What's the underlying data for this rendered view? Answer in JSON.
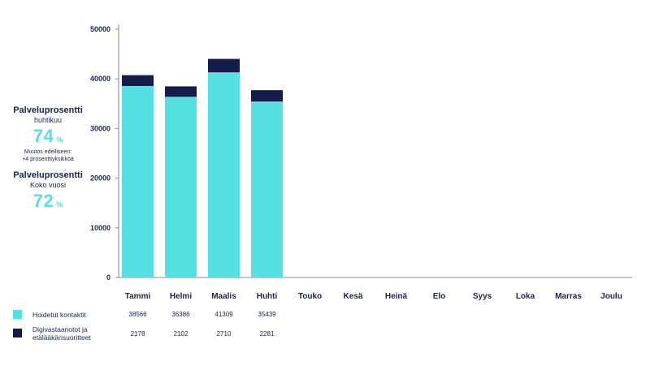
{
  "kpi_month": {
    "title": "Palveluprosentti",
    "subtitle": "huhtikuu",
    "value": "74",
    "unit": "%",
    "note_line1": "Muutos edelliseen:",
    "note_line2": "+4 prosenttiyksikköä"
  },
  "kpi_year": {
    "title": "Palveluprosentti",
    "subtitle": "Koko vuosi",
    "value": "72",
    "unit": "%"
  },
  "colors": {
    "cyan": "#57e0e2",
    "navy": "#131c4a",
    "axis": "#8a8a8a"
  },
  "chart_data": {
    "type": "bar",
    "stacked": true,
    "categories": [
      "Tammi",
      "Helmi",
      "Maalis",
      "Huhti",
      "Touko",
      "Kesä",
      "Heinä",
      "Elo",
      "Syys",
      "Loka",
      "Marras",
      "Joulu"
    ],
    "series": [
      {
        "name": "Hoidetut kontaktit",
        "color": "#57e0e2",
        "values": [
          38566,
          36386,
          41309,
          35439,
          null,
          null,
          null,
          null,
          null,
          null,
          null,
          null
        ],
        "labels": [
          "38566",
          "36386",
          "41309",
          "35439"
        ]
      },
      {
        "name": "Digivastaanotot ja etälääkärisuoritteet",
        "color": "#131c4a",
        "values": [
          2178,
          2102,
          2710,
          2281,
          null,
          null,
          null,
          null,
          null,
          null,
          null,
          null
        ],
        "labels": [
          "2178",
          "2102",
          "2710",
          "2281"
        ]
      }
    ],
    "legend_lines": [
      [
        "Hoidetut kontaktit"
      ],
      [
        "Digivastaanotot ja",
        "etälääkärisuoritteet"
      ]
    ],
    "yticks": [
      "0",
      "10000",
      "20000",
      "30000",
      "40000",
      "50000"
    ],
    "ylim": [
      0,
      50000
    ],
    "grid": false,
    "legend_position": "bottom-left table"
  }
}
